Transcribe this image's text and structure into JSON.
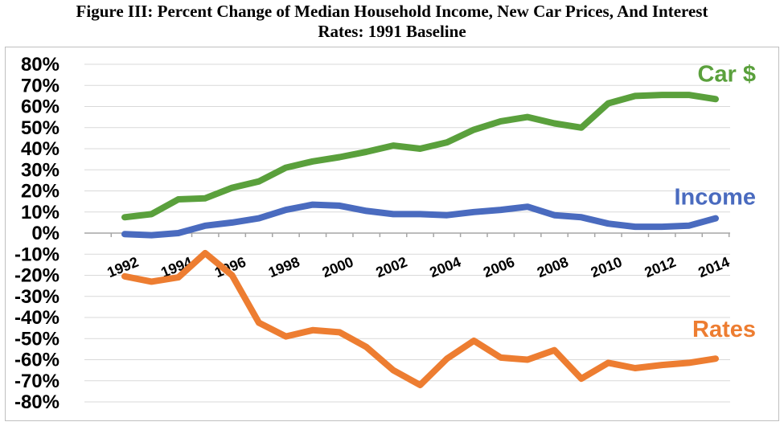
{
  "chart_data": {
    "type": "line",
    "title_line1": "Figure III: Percent Change of Median Household Income, New Car Prices, And Interest",
    "title_line2": "Rates:   1991 Baseline",
    "x": [
      1992,
      1993,
      1994,
      1995,
      1996,
      1997,
      1998,
      1999,
      2000,
      2001,
      2002,
      2003,
      2004,
      2005,
      2006,
      2007,
      2008,
      2009,
      2010,
      2011,
      2012,
      2013,
      2014
    ],
    "x_tick_labels": [
      "1992",
      "1994",
      "1996",
      "1998",
      "2000",
      "2002",
      "2004",
      "2006",
      "2008",
      "2010",
      "2012",
      "2014"
    ],
    "y_tick_labels": [
      "80%",
      "70%",
      "60%",
      "50%",
      "40%",
      "30%",
      "20%",
      "10%",
      "0%",
      "-10%",
      "-20%",
      "-30%",
      "-40%",
      "-50%",
      "-60%",
      "-70%",
      "-80%"
    ],
    "ylim": [
      -80,
      80
    ],
    "y_step": 10,
    "grid": true,
    "series": [
      {
        "name": "Car $",
        "color": "#5aa03c",
        "values": [
          7.5,
          9,
          16,
          16.5,
          21.5,
          24.5,
          31,
          34,
          36,
          38.5,
          41.5,
          40,
          43,
          49,
          53,
          55,
          52,
          50,
          61.5,
          65,
          65.5,
          65.5,
          63.5
        ]
      },
      {
        "name": "Income",
        "color": "#4a6bbf",
        "values": [
          -0.5,
          -1,
          0,
          3.5,
          5,
          7,
          11,
          13.5,
          13,
          10.5,
          9,
          9,
          8.5,
          10,
          11,
          12.5,
          8.5,
          7.5,
          4.5,
          3,
          3,
          3.5,
          7
        ]
      },
      {
        "name": "Rates",
        "color": "#ed7d31",
        "values": [
          -20.5,
          -23,
          -21,
          -9.5,
          -20,
          -42.5,
          -49,
          -46,
          -47,
          -54,
          -65,
          -72,
          -59.5,
          -51,
          -59,
          -60,
          -55.5,
          -69,
          -61.5,
          -64,
          -62.5,
          -61.5,
          -59.5
        ]
      }
    ]
  }
}
